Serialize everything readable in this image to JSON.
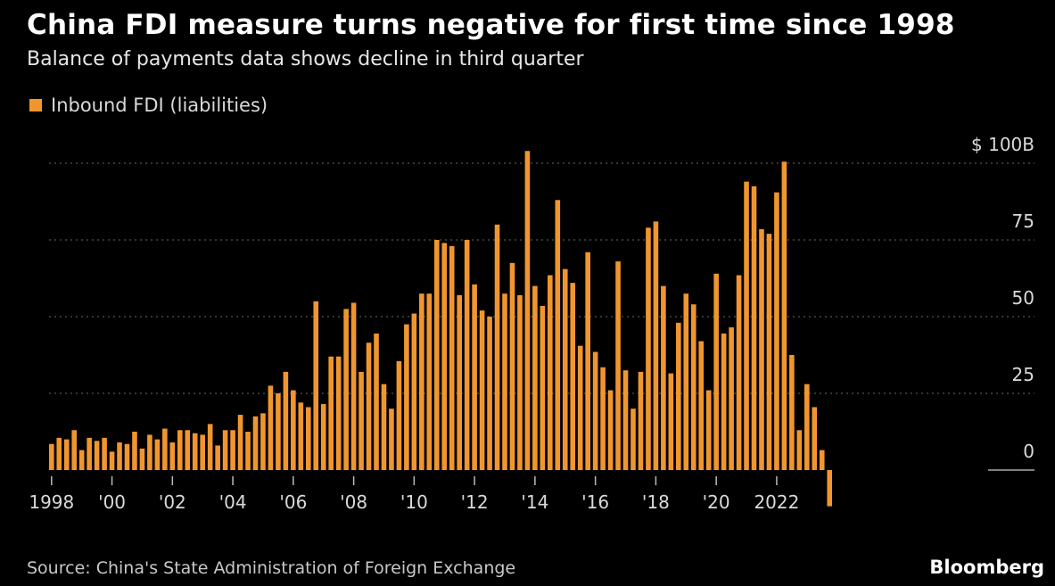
{
  "header": {
    "title": "China FDI measure turns negative for first time since 1998",
    "subtitle": "Balance of payments data shows decline in third quarter"
  },
  "colors": {
    "bar": "#F0962F",
    "grid": "#555555",
    "axis": "#cccccc",
    "background": "#000000"
  },
  "chart_data": {
    "type": "bar",
    "title": "China FDI measure turns negative for first time since 1998",
    "subtitle": "Balance of payments data shows decline in third quarter",
    "legend": {
      "label": "Inbound FDI (liabilities)",
      "placement": "top-left"
    },
    "xlabel": "",
    "ylabel": "",
    "ylim": [
      -12,
      105
    ],
    "y_ticks": [
      0,
      25,
      50,
      75,
      100
    ],
    "y_tick_labels": [
      "0",
      "25",
      "50",
      "75",
      "$ 100B"
    ],
    "grid": true,
    "x_tick_labels": [
      {
        "label": "1998",
        "quarter_index": 0
      },
      {
        "label": "'00",
        "quarter_index": 8
      },
      {
        "label": "'02",
        "quarter_index": 16
      },
      {
        "label": "'04",
        "quarter_index": 24
      },
      {
        "label": "'06",
        "quarter_index": 32
      },
      {
        "label": "'08",
        "quarter_index": 40
      },
      {
        "label": "'10",
        "quarter_index": 48
      },
      {
        "label": "'12",
        "quarter_index": 56
      },
      {
        "label": "'14",
        "quarter_index": 64
      },
      {
        "label": "'16",
        "quarter_index": 72
      },
      {
        "label": "'18",
        "quarter_index": 80
      },
      {
        "label": "'20",
        "quarter_index": 88
      },
      {
        "label": "2022",
        "quarter_index": 96
      }
    ],
    "series": [
      {
        "name": "Inbound FDI (liabilities)",
        "unit": "$B",
        "frequency": "quarterly",
        "start": "1998Q1",
        "values": [
          8.5,
          10.5,
          10,
          13,
          6.5,
          10.5,
          9.5,
          10.5,
          6,
          9,
          8.5,
          12.5,
          7,
          11.5,
          10,
          13.5,
          9,
          13,
          13,
          12,
          11.5,
          15,
          8,
          13,
          13,
          18,
          12.5,
          17.5,
          18.5,
          27.5,
          25,
          32,
          26,
          22,
          20.5,
          55,
          21.5,
          37,
          37,
          52.5,
          54.5,
          32,
          41.5,
          44.5,
          28,
          20,
          35.5,
          47.5,
          51,
          57.5,
          57.5,
          75,
          74,
          73,
          57,
          75,
          60.5,
          52,
          50,
          80,
          57.5,
          67.5,
          57,
          104,
          60,
          53.5,
          63.5,
          88,
          65.5,
          61,
          40.5,
          71,
          38.5,
          33.5,
          26,
          68,
          32.5,
          20,
          32,
          79,
          81,
          60,
          31.5,
          48,
          57.5,
          54,
          42,
          26,
          64,
          44.5,
          46.5,
          63.5,
          94,
          92.5,
          78.5,
          77,
          90.5,
          100.5,
          37.5,
          13,
          28,
          20.5,
          6.5,
          -11.8
        ]
      }
    ]
  },
  "footer": {
    "source": "Source: China's State Administration of Foreign Exchange",
    "brand": "Bloomberg"
  }
}
